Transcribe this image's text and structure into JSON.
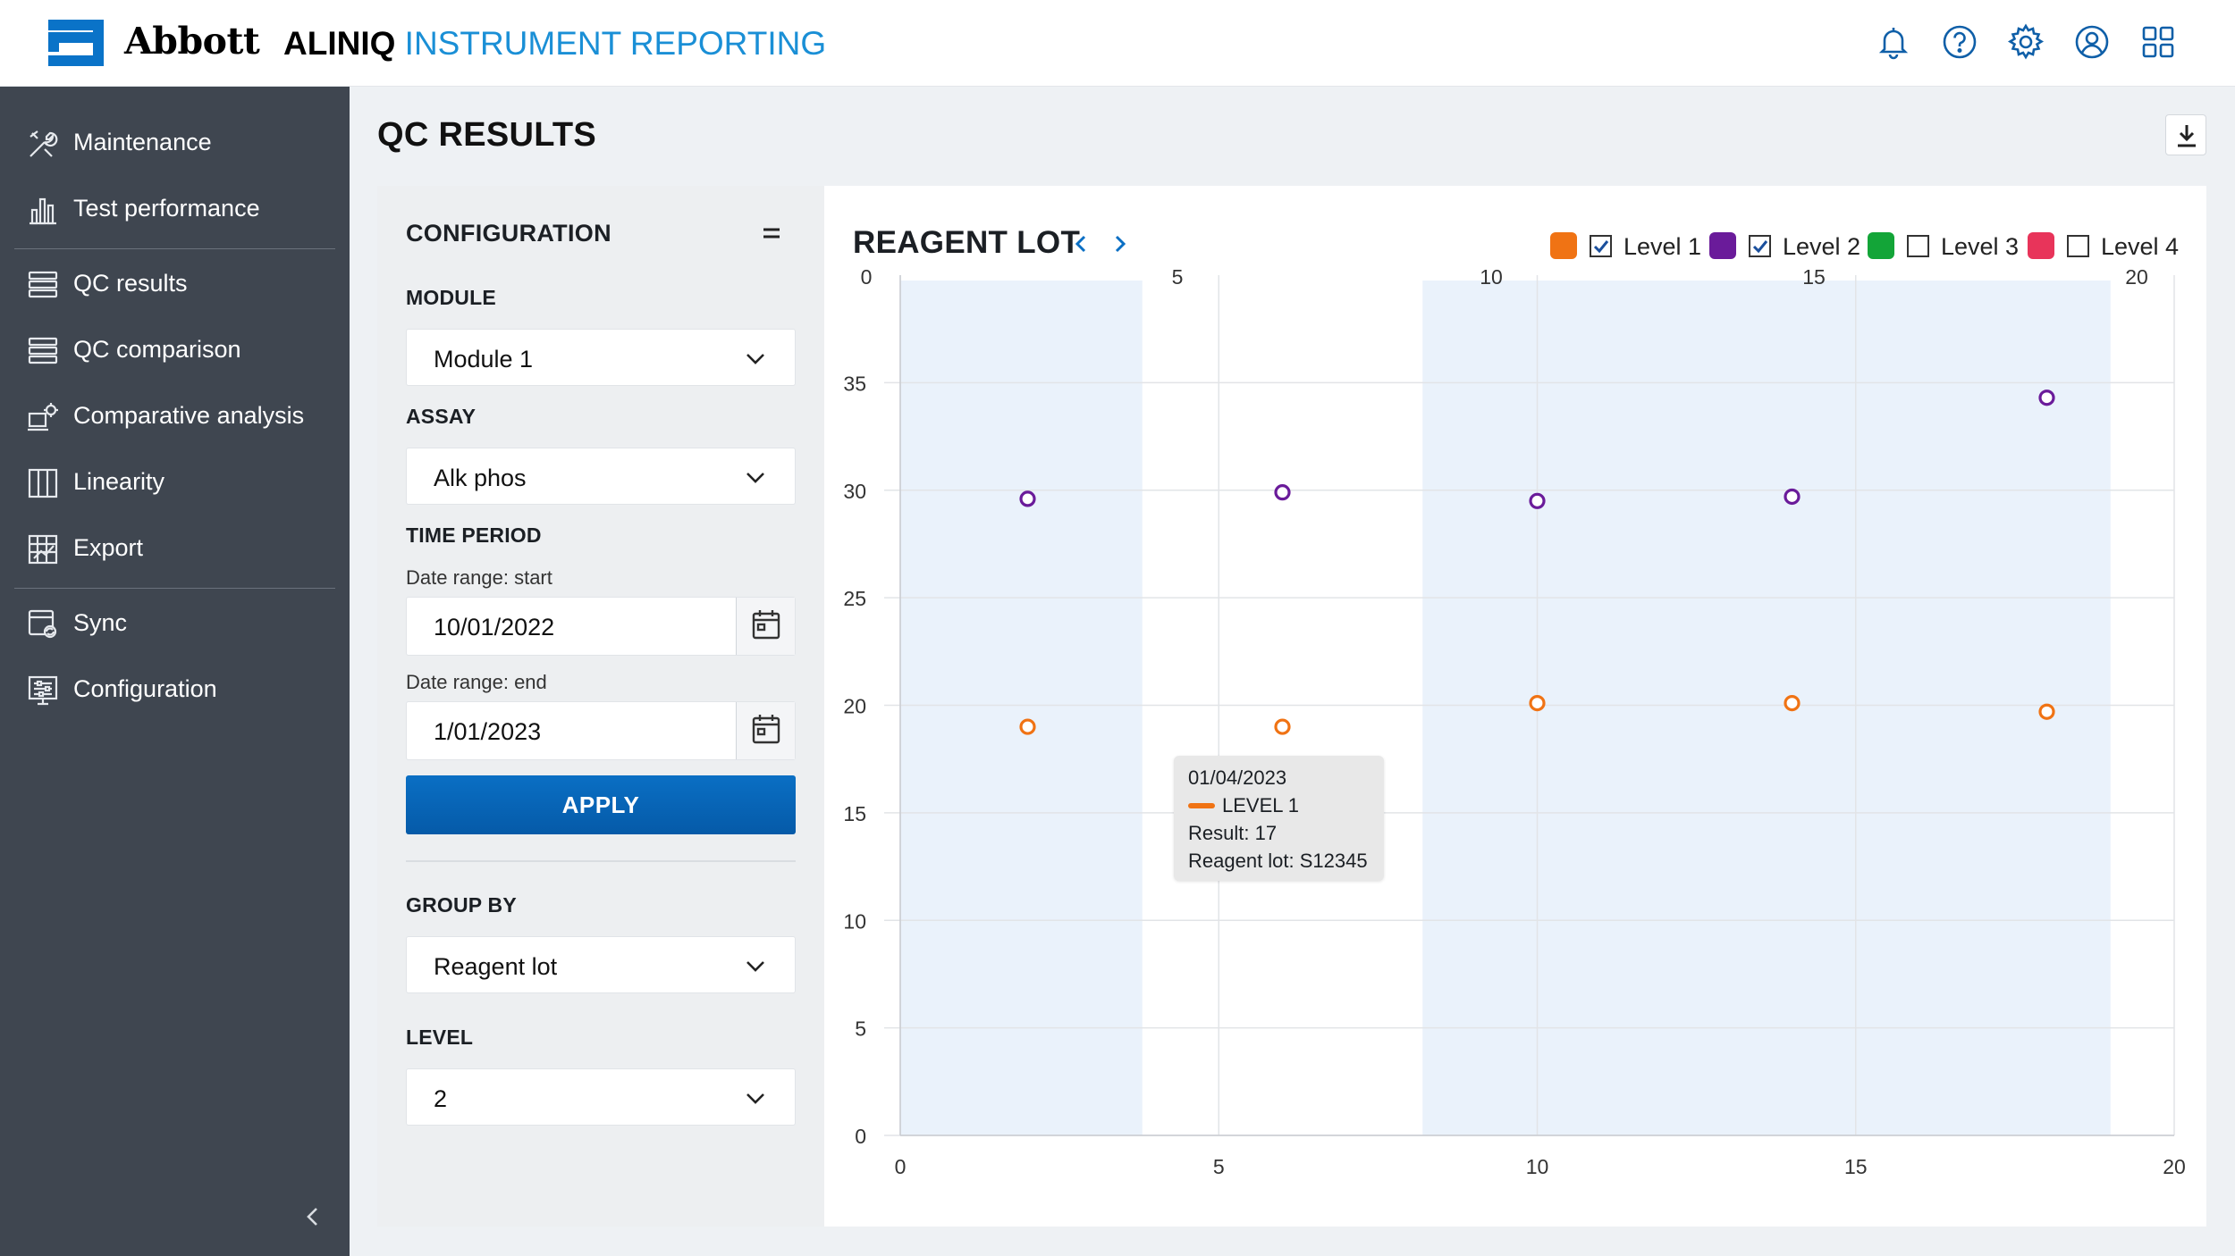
{
  "header": {
    "brand": "Abbott",
    "product_name": "ALINIQ",
    "product_sub": "INSTRUMENT REPORTING",
    "icons": [
      "bell-icon",
      "help-icon",
      "gear-icon",
      "user-icon",
      "apps-icon"
    ]
  },
  "sidebar": {
    "items": [
      {
        "label": "Maintenance",
        "icon": "tools-icon"
      },
      {
        "label": "Test performance",
        "icon": "bar-chart-icon"
      },
      {
        "label": "QC results",
        "icon": "list-icon"
      },
      {
        "label": "QC comparison",
        "icon": "list-icon"
      },
      {
        "label": "Comparative analysis",
        "icon": "analysis-icon"
      },
      {
        "label": "Linearity",
        "icon": "columns-icon"
      },
      {
        "label": "Export",
        "icon": "grid-icon"
      },
      {
        "label": "Sync",
        "icon": "sync-icon"
      },
      {
        "label": "Configuration",
        "icon": "sliders-icon"
      }
    ],
    "active_item": "QC results"
  },
  "page": {
    "title": "QC RESULTS"
  },
  "config": {
    "title": "CONFIGURATION",
    "module_label": "MODULE",
    "module_value": "Module 1",
    "assay_label": "ASSAY",
    "assay_value": "Alk phos",
    "time_period_label": "TIME PERIOD",
    "start_label": "Date range: start",
    "start_value": "10/01/2022",
    "end_label": "Date range: end",
    "end_value": "1/01/2023",
    "apply_label": "APPLY",
    "group_by_label": "GROUP BY",
    "group_by_value": "Reagent lot",
    "level_label": "LEVEL",
    "level_value": "2"
  },
  "chart_header": {
    "title": "REAGENT LOT",
    "legend": [
      {
        "label": "Level 1",
        "color": "#f07314",
        "checked": true
      },
      {
        "label": "Level 2",
        "color": "#6a1b9a",
        "checked": true
      },
      {
        "label": "Level 3",
        "color": "#13a538",
        "checked": false
      },
      {
        "label": "Level 4",
        "color": "#e8345a",
        "checked": false
      }
    ]
  },
  "tooltip": {
    "date": "01/04/2023",
    "level": "LEVEL 1",
    "result": "Result: 17",
    "reagent_lot": "Reagent lot: S12345"
  },
  "chart_data": {
    "type": "scatter",
    "title": "REAGENT LOT",
    "xlim": [
      0,
      20
    ],
    "ylim": [
      0,
      40
    ],
    "x_ticks": [
      0,
      5,
      10,
      15,
      20
    ],
    "y_ticks": [
      0,
      5,
      10,
      15,
      20,
      25,
      30,
      35
    ],
    "top_ticks": [
      0,
      5,
      10,
      15,
      20
    ],
    "grid": true,
    "legend_position": "top-right",
    "shaded_bands": [
      [
        0,
        3.8
      ],
      [
        8.2,
        19.0
      ]
    ],
    "series": [
      {
        "name": "Level 1",
        "color": "#f07314",
        "points": [
          [
            2,
            19
          ],
          [
            6,
            19
          ],
          [
            10,
            20.1
          ],
          [
            14,
            20.1
          ],
          [
            18,
            19.7
          ]
        ]
      },
      {
        "name": "Level 2",
        "color": "#6a1b9a",
        "points": [
          [
            2,
            29.6
          ],
          [
            6,
            29.9
          ],
          [
            10,
            29.5
          ],
          [
            14,
            29.7
          ],
          [
            18,
            34.3
          ]
        ]
      }
    ]
  }
}
